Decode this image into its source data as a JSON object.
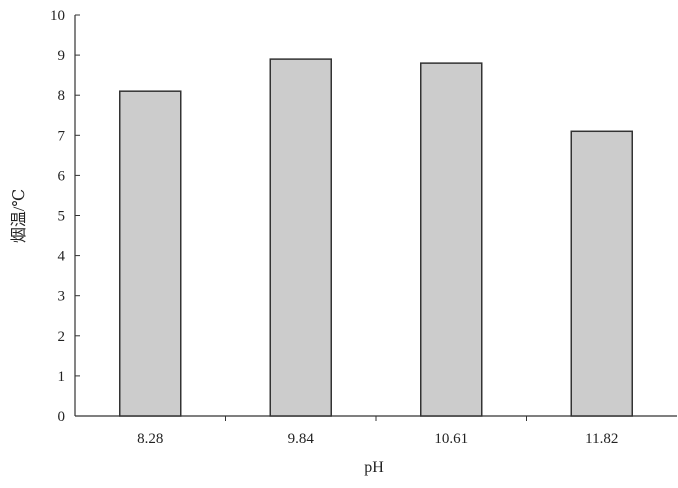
{
  "chart_data": {
    "type": "bar",
    "categories": [
      "8.28",
      "9.84",
      "10.61",
      "11.82"
    ],
    "values": [
      8.1,
      8.9,
      8.8,
      7.1
    ],
    "title": "",
    "xlabel": "pH",
    "ylabel": "烟温/℃",
    "ylim": [
      0,
      10
    ],
    "yticks": [
      "0",
      "1",
      "2",
      "3",
      "4",
      "5",
      "6",
      "7",
      "8",
      "9",
      "10"
    ],
    "grid": false,
    "bar_color": "#cccccc",
    "bar_edge_color": "#333333"
  }
}
